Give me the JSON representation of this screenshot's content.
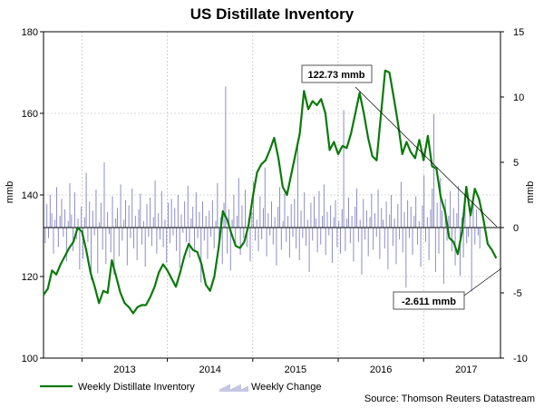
{
  "chart_data": {
    "type": "line",
    "title": "US Distillate Inventory",
    "ylabel_left": "mmb",
    "ylabel_right": "mmb",
    "ylim_left": [
      100,
      180
    ],
    "yticks_left": [
      "100",
      "120",
      "140",
      "160",
      "180"
    ],
    "ylim_right": [
      -10,
      15
    ],
    "yticks_right": [
      "-10",
      "-5",
      "0",
      "5",
      "10",
      "15"
    ],
    "x_range": [
      2012.55,
      2017.9
    ],
    "year_labels": [
      "2013",
      "2014",
      "2015",
      "2016",
      "2017"
    ],
    "grid": true,
    "legend_position": "bottom-left",
    "series": [
      {
        "name": "Weekly Distillate Inventory",
        "color": "#0a7a0a",
        "axis": "left",
        "points": [
          [
            2012.55,
            115.5
          ],
          [
            2012.6,
            117.0
          ],
          [
            2012.65,
            121.5
          ],
          [
            2012.7,
            120.5
          ],
          [
            2012.75,
            123.0
          ],
          [
            2012.8,
            125.0
          ],
          [
            2012.85,
            127.0
          ],
          [
            2012.9,
            128.5
          ],
          [
            2012.95,
            132.0
          ],
          [
            2013.0,
            131.0
          ],
          [
            2013.05,
            126.5
          ],
          [
            2013.1,
            121.0
          ],
          [
            2013.15,
            117.5
          ],
          [
            2013.2,
            113.5
          ],
          [
            2013.25,
            116.5
          ],
          [
            2013.3,
            116.0
          ],
          [
            2013.35,
            124.0
          ],
          [
            2013.4,
            120.0
          ],
          [
            2013.45,
            116.0
          ],
          [
            2013.5,
            113.5
          ],
          [
            2013.55,
            112.5
          ],
          [
            2013.6,
            111.0
          ],
          [
            2013.65,
            112.5
          ],
          [
            2013.7,
            113.0
          ],
          [
            2013.75,
            113.0
          ],
          [
            2013.8,
            115.0
          ],
          [
            2013.85,
            117.5
          ],
          [
            2013.9,
            121.0
          ],
          [
            2013.95,
            123.0
          ],
          [
            2014.0,
            121.5
          ],
          [
            2014.05,
            119.5
          ],
          [
            2014.1,
            117.5
          ],
          [
            2014.15,
            121.0
          ],
          [
            2014.2,
            125.0
          ],
          [
            2014.25,
            128.0
          ],
          [
            2014.3,
            126.5
          ],
          [
            2014.35,
            126.0
          ],
          [
            2014.4,
            123.0
          ],
          [
            2014.45,
            118.0
          ],
          [
            2014.5,
            116.5
          ],
          [
            2014.55,
            120.0
          ],
          [
            2014.6,
            127.0
          ],
          [
            2014.65,
            136.0
          ],
          [
            2014.7,
            134.0
          ],
          [
            2014.75,
            130.5
          ],
          [
            2014.8,
            127.5
          ],
          [
            2014.85,
            127.0
          ],
          [
            2014.9,
            128.5
          ],
          [
            2014.95,
            132.5
          ],
          [
            2015.0,
            139.5
          ],
          [
            2015.05,
            145.5
          ],
          [
            2015.1,
            147.5
          ],
          [
            2015.15,
            148.5
          ],
          [
            2015.2,
            151.0
          ],
          [
            2015.25,
            154.0
          ],
          [
            2015.3,
            149.0
          ],
          [
            2015.35,
            142.0
          ],
          [
            2015.4,
            140.0
          ],
          [
            2015.45,
            145.0
          ],
          [
            2015.5,
            150.0
          ],
          [
            2015.55,
            155.0
          ],
          [
            2015.6,
            165.5
          ],
          [
            2015.65,
            161.0
          ],
          [
            2015.7,
            163.0
          ],
          [
            2015.75,
            162.0
          ],
          [
            2015.8,
            163.5
          ],
          [
            2015.85,
            160.0
          ],
          [
            2015.9,
            151.0
          ],
          [
            2015.95,
            153.0
          ],
          [
            2016.0,
            150.0
          ],
          [
            2016.05,
            152.0
          ],
          [
            2016.1,
            151.5
          ],
          [
            2016.15,
            155.0
          ],
          [
            2016.2,
            160.0
          ],
          [
            2016.25,
            165.0
          ],
          [
            2016.3,
            160.0
          ],
          [
            2016.35,
            154.0
          ],
          [
            2016.4,
            149.5
          ],
          [
            2016.45,
            148.5
          ],
          [
            2016.5,
            159.5
          ],
          [
            2016.55,
            170.5
          ],
          [
            2016.6,
            170.0
          ],
          [
            2016.65,
            164.0
          ],
          [
            2016.7,
            157.5
          ],
          [
            2016.75,
            150.0
          ],
          [
            2016.8,
            153.0
          ],
          [
            2016.85,
            150.5
          ],
          [
            2016.9,
            149.0
          ],
          [
            2016.95,
            153.5
          ],
          [
            2017.0,
            148.5
          ],
          [
            2017.05,
            154.5
          ],
          [
            2017.1,
            147.0
          ],
          [
            2017.15,
            146.5
          ],
          [
            2017.2,
            139.5
          ],
          [
            2017.25,
            136.0
          ],
          [
            2017.3,
            129.5
          ],
          [
            2017.35,
            128.5
          ],
          [
            2017.4,
            125.5
          ],
          [
            2017.45,
            131.0
          ],
          [
            2017.5,
            142.0
          ],
          [
            2017.55,
            135.0
          ],
          [
            2017.6,
            141.5
          ],
          [
            2017.65,
            139.0
          ],
          [
            2017.7,
            134.0
          ],
          [
            2017.75,
            128.0
          ],
          [
            2017.8,
            126.5
          ],
          [
            2017.85,
            124.5
          ]
        ]
      },
      {
        "name": "Weekly Change",
        "color": "#8c8cc8",
        "axis": "right",
        "type": "bar",
        "x_start": 2012.57,
        "x_step": 0.0192,
        "values": [
          -1.2,
          1.8,
          -0.8,
          2.5,
          1.1,
          -2.0,
          0.6,
          3.1,
          -1.5,
          0.9,
          2.2,
          -0.7,
          1.4,
          -2.6,
          0.5,
          3.4,
          1.0,
          -1.8,
          2.7,
          -0.9,
          0.7,
          -3.2,
          1.6,
          -2.4,
          0.8,
          4.2,
          -1.1,
          2.0,
          -4.0,
          1.3,
          -0.6,
          2.9,
          -3.5,
          0.4,
          1.9,
          -1.7,
          5.0,
          -2.8,
          1.2,
          -0.5,
          -1.9,
          2.4,
          -3.6,
          0.7,
          1.5,
          -2.2,
          3.3,
          -1.0,
          0.6,
          2.1,
          -2.9,
          1.7,
          -0.8,
          3.0,
          -1.6,
          0.9,
          -2.5,
          1.4,
          2.6,
          -1.3,
          0.5,
          -3.0,
          1.8,
          -0.7,
          2.3,
          -1.4,
          0.8,
          3.6,
          -2.0,
          1.1,
          -0.9,
          2.8,
          -1.5,
          0.6,
          -2.7,
          1.9,
          -1.2,
          2.2,
          -0.6,
          1.5,
          -1.8,
          2.5,
          -3.1,
          1.0,
          -0.4,
          2.0,
          -1.1,
          3.2,
          -2.3,
          0.7,
          1.6,
          -1.9,
          2.7,
          -0.8,
          1.2,
          -4.2,
          2.0,
          -1.0,
          0.9,
          -2.4,
          1.3,
          -0.7,
          2.1,
          -1.6,
          0.5,
          3.4,
          -1.2,
          0.8,
          -2.8,
          1.9,
          10.8,
          -2.0,
          1.4,
          -3.3,
          0.6,
          2.5,
          -1.4,
          0.9,
          3.8,
          -2.1,
          1.7,
          -0.8,
          2.9,
          -1.5,
          0.7,
          -2.6,
          1.2,
          3.5,
          -1.0,
          0.6,
          -1.8,
          2.4,
          -0.9,
          1.5,
          4.6,
          -2.2,
          1.1,
          -0.6,
          2.0,
          -1.3,
          0.8,
          -2.9,
          1.6,
          3.1,
          -1.7,
          0.5,
          2.6,
          -1.1,
          0.9,
          -2.3,
          1.8,
          -0.7,
          2.2,
          -1.6,
          6.2,
          -2.5,
          1.3,
          -0.8,
          2.7,
          -1.4,
          0.6,
          -3.4,
          1.9,
          -1.0,
          2.4,
          0.7,
          -1.9,
          2.8,
          -1.3,
          0.9,
          3.3,
          -2.1,
          1.2,
          -0.6,
          1.7,
          -2.7,
          0.8,
          2.1,
          -1.5,
          0.5,
          -2.0,
          1.4,
          9.0,
          -1.8,
          0.7,
          2.3,
          -1.2,
          0.9,
          -2.6,
          1.6,
          3.0,
          -1.1,
          0.6,
          -3.6,
          2.2,
          -0.9,
          1.3,
          -2.2,
          0.8,
          2.6,
          -1.7,
          1.1,
          -0.7,
          2.9,
          -2.4,
          1.5,
          0.6,
          -1.6,
          2.0,
          -3.2,
          1.0,
          2.5,
          -1.4,
          0.7,
          -2.8,
          1.8,
          -0.9,
          3.5,
          -1.9,
          1.2,
          -4.6,
          2.1,
          -0.8,
          1.6,
          -2.1,
          0.9,
          2.4,
          -1.3,
          0.5,
          -3.0,
          1.7,
          4.0,
          -1.1,
          0.8,
          -2.5,
          1.4,
          3.0,
          8.7,
          -3.4,
          1.9,
          -2.0,
          3.8,
          1.3,
          -4.3,
          2.2,
          -1.0,
          0.9,
          2.8,
          -1.8,
          1.5,
          -2.9,
          1.1,
          3.2,
          -3.7,
          0.8,
          -2.3,
          1.6,
          -1.2,
          -0.7,
          1.0,
          -4.9,
          2.1,
          -1.3,
          1.4,
          -0.6,
          -1.6
        ]
      }
    ],
    "annotations": [
      {
        "label": "122.73 mmb"
      },
      {
        "label": "-2.611 mmb"
      }
    ],
    "source": "Source: Thomson Reuters Datastream"
  }
}
